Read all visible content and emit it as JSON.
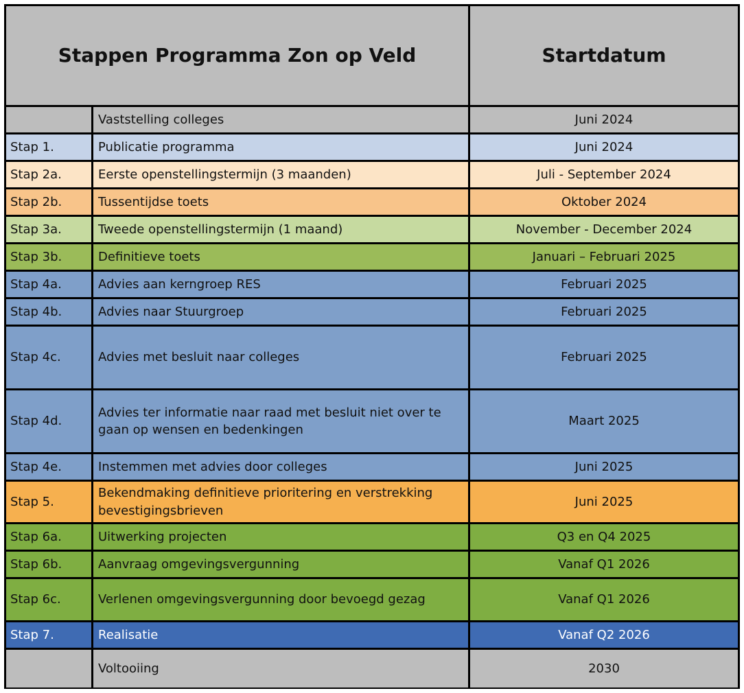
{
  "header": {
    "title": "Stappen Programma Zon op Veld",
    "date_col": "Startdatum"
  },
  "colors": {
    "grey": "#bdbdbd",
    "lightblue": "#c5d3e8",
    "peach": "#fce4c6",
    "orange_light": "#f8c48a",
    "green_light": "#c6daa0",
    "green_mid": "#9bbb59",
    "steel_blue": "#7f9fc9",
    "orange": "#f6b04f",
    "green": "#7fae42",
    "blue_dark": "#3f6bb3"
  },
  "rows": [
    {
      "step": "",
      "desc": "Vaststelling colleges",
      "date": "Juni 2024",
      "color": "#bdbdbd"
    },
    {
      "step": "Stap 1.",
      "desc": "Publicatie programma",
      "date": "Juni 2024",
      "color": "#c5d3e8"
    },
    {
      "step": "Stap 2a.",
      "desc": "Eerste openstellingstermijn (3 maanden)",
      "date": "Juli - September 2024",
      "color": "#fce4c6"
    },
    {
      "step": "Stap 2b.",
      "desc": "Tussentijdse toets",
      "date": "Oktober 2024",
      "color": "#f8c48a"
    },
    {
      "step": "Stap 3a.",
      "desc": "Tweede openstellingstermijn (1 maand)",
      "date": "November - December 2024",
      "color": "#c6daa0"
    },
    {
      "step": "Stap 3b.",
      "desc": "Definitieve toets",
      "date": "Januari – Februari 2025",
      "color": "#9bbb59"
    },
    {
      "step": "Stap 4a.",
      "desc": "Advies aan kerngroep RES",
      "date": "Februari 2025",
      "color": "#7f9fc9"
    },
    {
      "step": "Stap 4b.",
      "desc": "Advies naar Stuurgroep",
      "date": "Februari 2025",
      "color": "#7f9fc9"
    },
    {
      "step": "Stap 4c.",
      "desc": "Advies met besluit naar colleges",
      "date": "Februari 2025",
      "color": "#7f9fc9"
    },
    {
      "step": "Stap 4d.",
      "desc": "Advies ter informatie naar raad met besluit niet over te gaan op wensen en bedenkingen",
      "date": "Maart 2025",
      "color": "#7f9fc9"
    },
    {
      "step": "Stap 4e.",
      "desc": "Instemmen met advies door colleges",
      "date": "Juni 2025",
      "color": "#7f9fc9"
    },
    {
      "step": "Stap 5.",
      "desc": "Bekendmaking definitieve prioritering en verstrekking bevestigingsbrieven",
      "date": "Juni 2025",
      "color": "#f6b04f"
    },
    {
      "step": "Stap 6a.",
      "desc": "Uitwerking projecten",
      "date": "Q3 en Q4 2025",
      "color": "#7fae42"
    },
    {
      "step": "Stap 6b.",
      "desc": "Aanvraag omgevingsvergunning",
      "date": "Vanaf Q1 2026",
      "color": "#7fae42"
    },
    {
      "step": "Stap 6c.",
      "desc": "Verlenen omgevingsvergunning door bevoegd gezag",
      "date": "Vanaf Q1 2026",
      "color": "#7fae42"
    },
    {
      "step": "Stap 7.",
      "desc": "Realisatie",
      "date": "Vanaf Q2 2026",
      "color": "#3f6bb3"
    },
    {
      "step": "",
      "desc": "Voltooiing",
      "date": "2030",
      "color": "#bdbdbd"
    }
  ]
}
